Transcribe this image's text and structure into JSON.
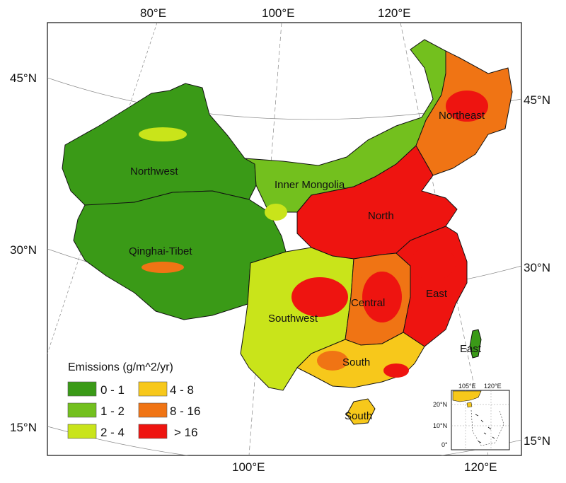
{
  "map": {
    "graticule": {
      "top": [
        "80°E",
        "100°E",
        "120°E"
      ],
      "bottom": [
        "100°E",
        "120°E"
      ],
      "left": [
        "45°N",
        "30°N",
        "15°N"
      ],
      "right": [
        "45°N",
        "30°N",
        "15°N"
      ]
    },
    "regions": [
      {
        "id": "northeast",
        "label": "Northeast"
      },
      {
        "id": "northwest",
        "label": "Northwest"
      },
      {
        "id": "inner-mongolia",
        "label": "Inner Mongolia"
      },
      {
        "id": "north",
        "label": "North"
      },
      {
        "id": "qinghai-tibet",
        "label": "Qinghai-Tibet"
      },
      {
        "id": "southwest",
        "label": "Southwest"
      },
      {
        "id": "central",
        "label": "Central"
      },
      {
        "id": "east",
        "label": "East"
      },
      {
        "id": "east-taiwan",
        "label": "East"
      },
      {
        "id": "south",
        "label": "South"
      },
      {
        "id": "south-hainan",
        "label": "South"
      }
    ],
    "legend": {
      "title": "Emissions (g/m^2/yr)",
      "classes": [
        {
          "label": "0 - 1",
          "color": "#3a9a17"
        },
        {
          "label": "1 - 2",
          "color": "#73c01e"
        },
        {
          "label": "2 - 4",
          "color": "#c9e41a"
        },
        {
          "label": "4 - 8",
          "color": "#f7c81b"
        },
        {
          "label": "8 - 16",
          "color": "#f07414"
        },
        {
          "label": "> 16",
          "color": "#ee1410"
        }
      ]
    },
    "inset": {
      "top": [
        "105°E",
        "120°E"
      ],
      "left": [
        "20°N",
        "10°N",
        "0°"
      ]
    }
  }
}
